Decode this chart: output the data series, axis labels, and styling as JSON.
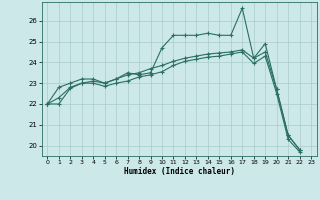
{
  "title": "",
  "xlabel": "Humidex (Indice chaleur)",
  "background_color": "#cce8e8",
  "grid_color": "#aacccc",
  "line_color": "#2a6e64",
  "xlim": [
    -0.5,
    23.5
  ],
  "ylim": [
    19.5,
    26.9
  ],
  "x_ticks": [
    0,
    1,
    2,
    3,
    4,
    5,
    6,
    7,
    8,
    9,
    10,
    11,
    12,
    13,
    14,
    15,
    16,
    17,
    18,
    19,
    20,
    21,
    22,
    23
  ],
  "y_ticks": [
    20,
    21,
    22,
    23,
    24,
    25,
    26
  ],
  "line1_x": [
    0,
    1,
    2,
    3,
    4,
    5,
    6,
    7,
    8,
    9,
    10,
    11,
    12,
    13,
    14,
    15,
    16,
    17,
    18,
    19,
    20,
    21,
    22
  ],
  "line1_y": [
    22.0,
    22.8,
    23.0,
    23.2,
    23.2,
    23.0,
    23.2,
    23.5,
    23.4,
    23.5,
    24.7,
    25.3,
    25.3,
    25.3,
    25.4,
    25.3,
    25.3,
    26.6,
    24.2,
    24.9,
    22.7,
    20.5,
    19.8
  ],
  "line2_x": [
    0,
    1,
    2,
    3,
    4,
    5,
    6,
    7,
    8,
    9,
    10,
    11,
    12,
    13,
    14,
    15,
    16,
    17,
    18,
    19,
    20,
    21,
    22
  ],
  "line2_y": [
    22.0,
    22.3,
    22.8,
    23.0,
    23.1,
    23.0,
    23.2,
    23.4,
    23.5,
    23.7,
    23.85,
    24.05,
    24.2,
    24.3,
    24.4,
    24.45,
    24.5,
    24.6,
    24.2,
    24.5,
    22.7,
    20.5,
    19.8
  ],
  "line3_x": [
    0,
    1,
    2,
    3,
    4,
    5,
    6,
    7,
    8,
    9,
    10,
    11,
    12,
    13,
    14,
    15,
    16,
    17,
    18,
    19,
    20,
    21,
    22
  ],
  "line3_y": [
    22.0,
    22.0,
    22.75,
    23.0,
    23.0,
    22.85,
    23.0,
    23.1,
    23.3,
    23.4,
    23.55,
    23.85,
    24.05,
    24.15,
    24.25,
    24.3,
    24.4,
    24.5,
    23.95,
    24.3,
    22.5,
    20.3,
    19.7
  ]
}
